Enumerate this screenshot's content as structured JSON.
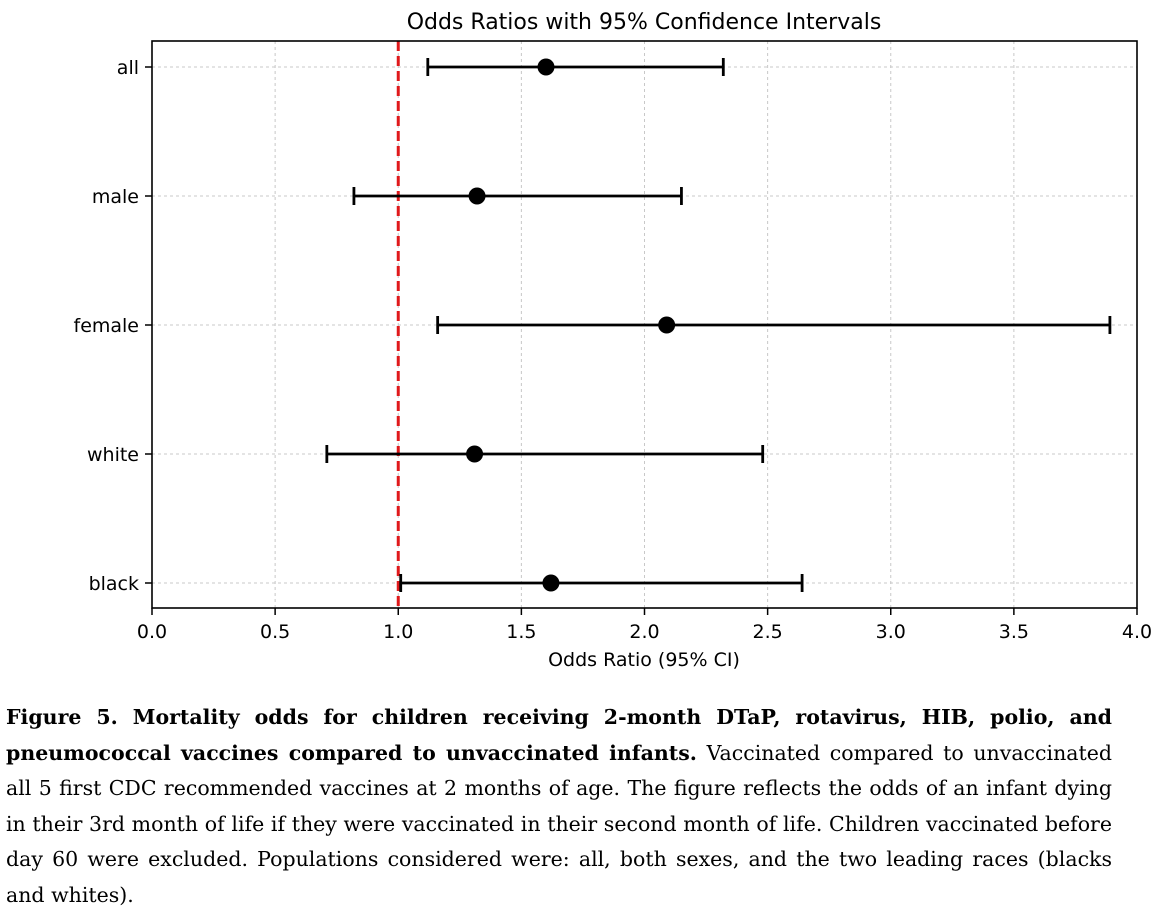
{
  "chart_data": {
    "type": "forest",
    "title": "Odds Ratios with 95% Confidence Intervals",
    "xlabel": "Odds Ratio (95% CI)",
    "ylabel": "",
    "xlim": [
      0.0,
      4.0
    ],
    "xticks": [
      "0.0",
      "0.5",
      "1.0",
      "1.5",
      "2.0",
      "2.5",
      "3.0",
      "3.5",
      "4.0"
    ],
    "grid": true,
    "reference_line": {
      "x": 1.0,
      "color": "#e0191b",
      "style": "dashed"
    },
    "point_color": "#000000",
    "groups": [
      {
        "label": "all",
        "or": 1.6,
        "lower": 1.12,
        "upper": 2.32
      },
      {
        "label": "male",
        "or": 1.32,
        "lower": 0.82,
        "upper": 2.15
      },
      {
        "label": "female",
        "or": 2.09,
        "lower": 1.16,
        "upper": 3.89
      },
      {
        "label": "white",
        "or": 1.31,
        "lower": 0.71,
        "upper": 2.48
      },
      {
        "label": "black",
        "or": 1.62,
        "lower": 1.01,
        "upper": 2.64
      }
    ]
  },
  "caption": {
    "bold": "Figure 5. Mortality odds for children receiving 2-month DTaP, rotavirus, HIB, polio, and pneumococcal vaccines compared to unvaccinated infants.",
    "text": " Vaccinated compared to unvaccinated all 5 first CDC recommended vaccines at 2 months of age. The figure reflects the odds of an infant dying in their 3rd month of life if they were vaccinated in their second month of life.   Children vaccinated before day 60 were excluded. Populations considered were: all, both sexes, and the two leading races (blacks and whites)."
  }
}
